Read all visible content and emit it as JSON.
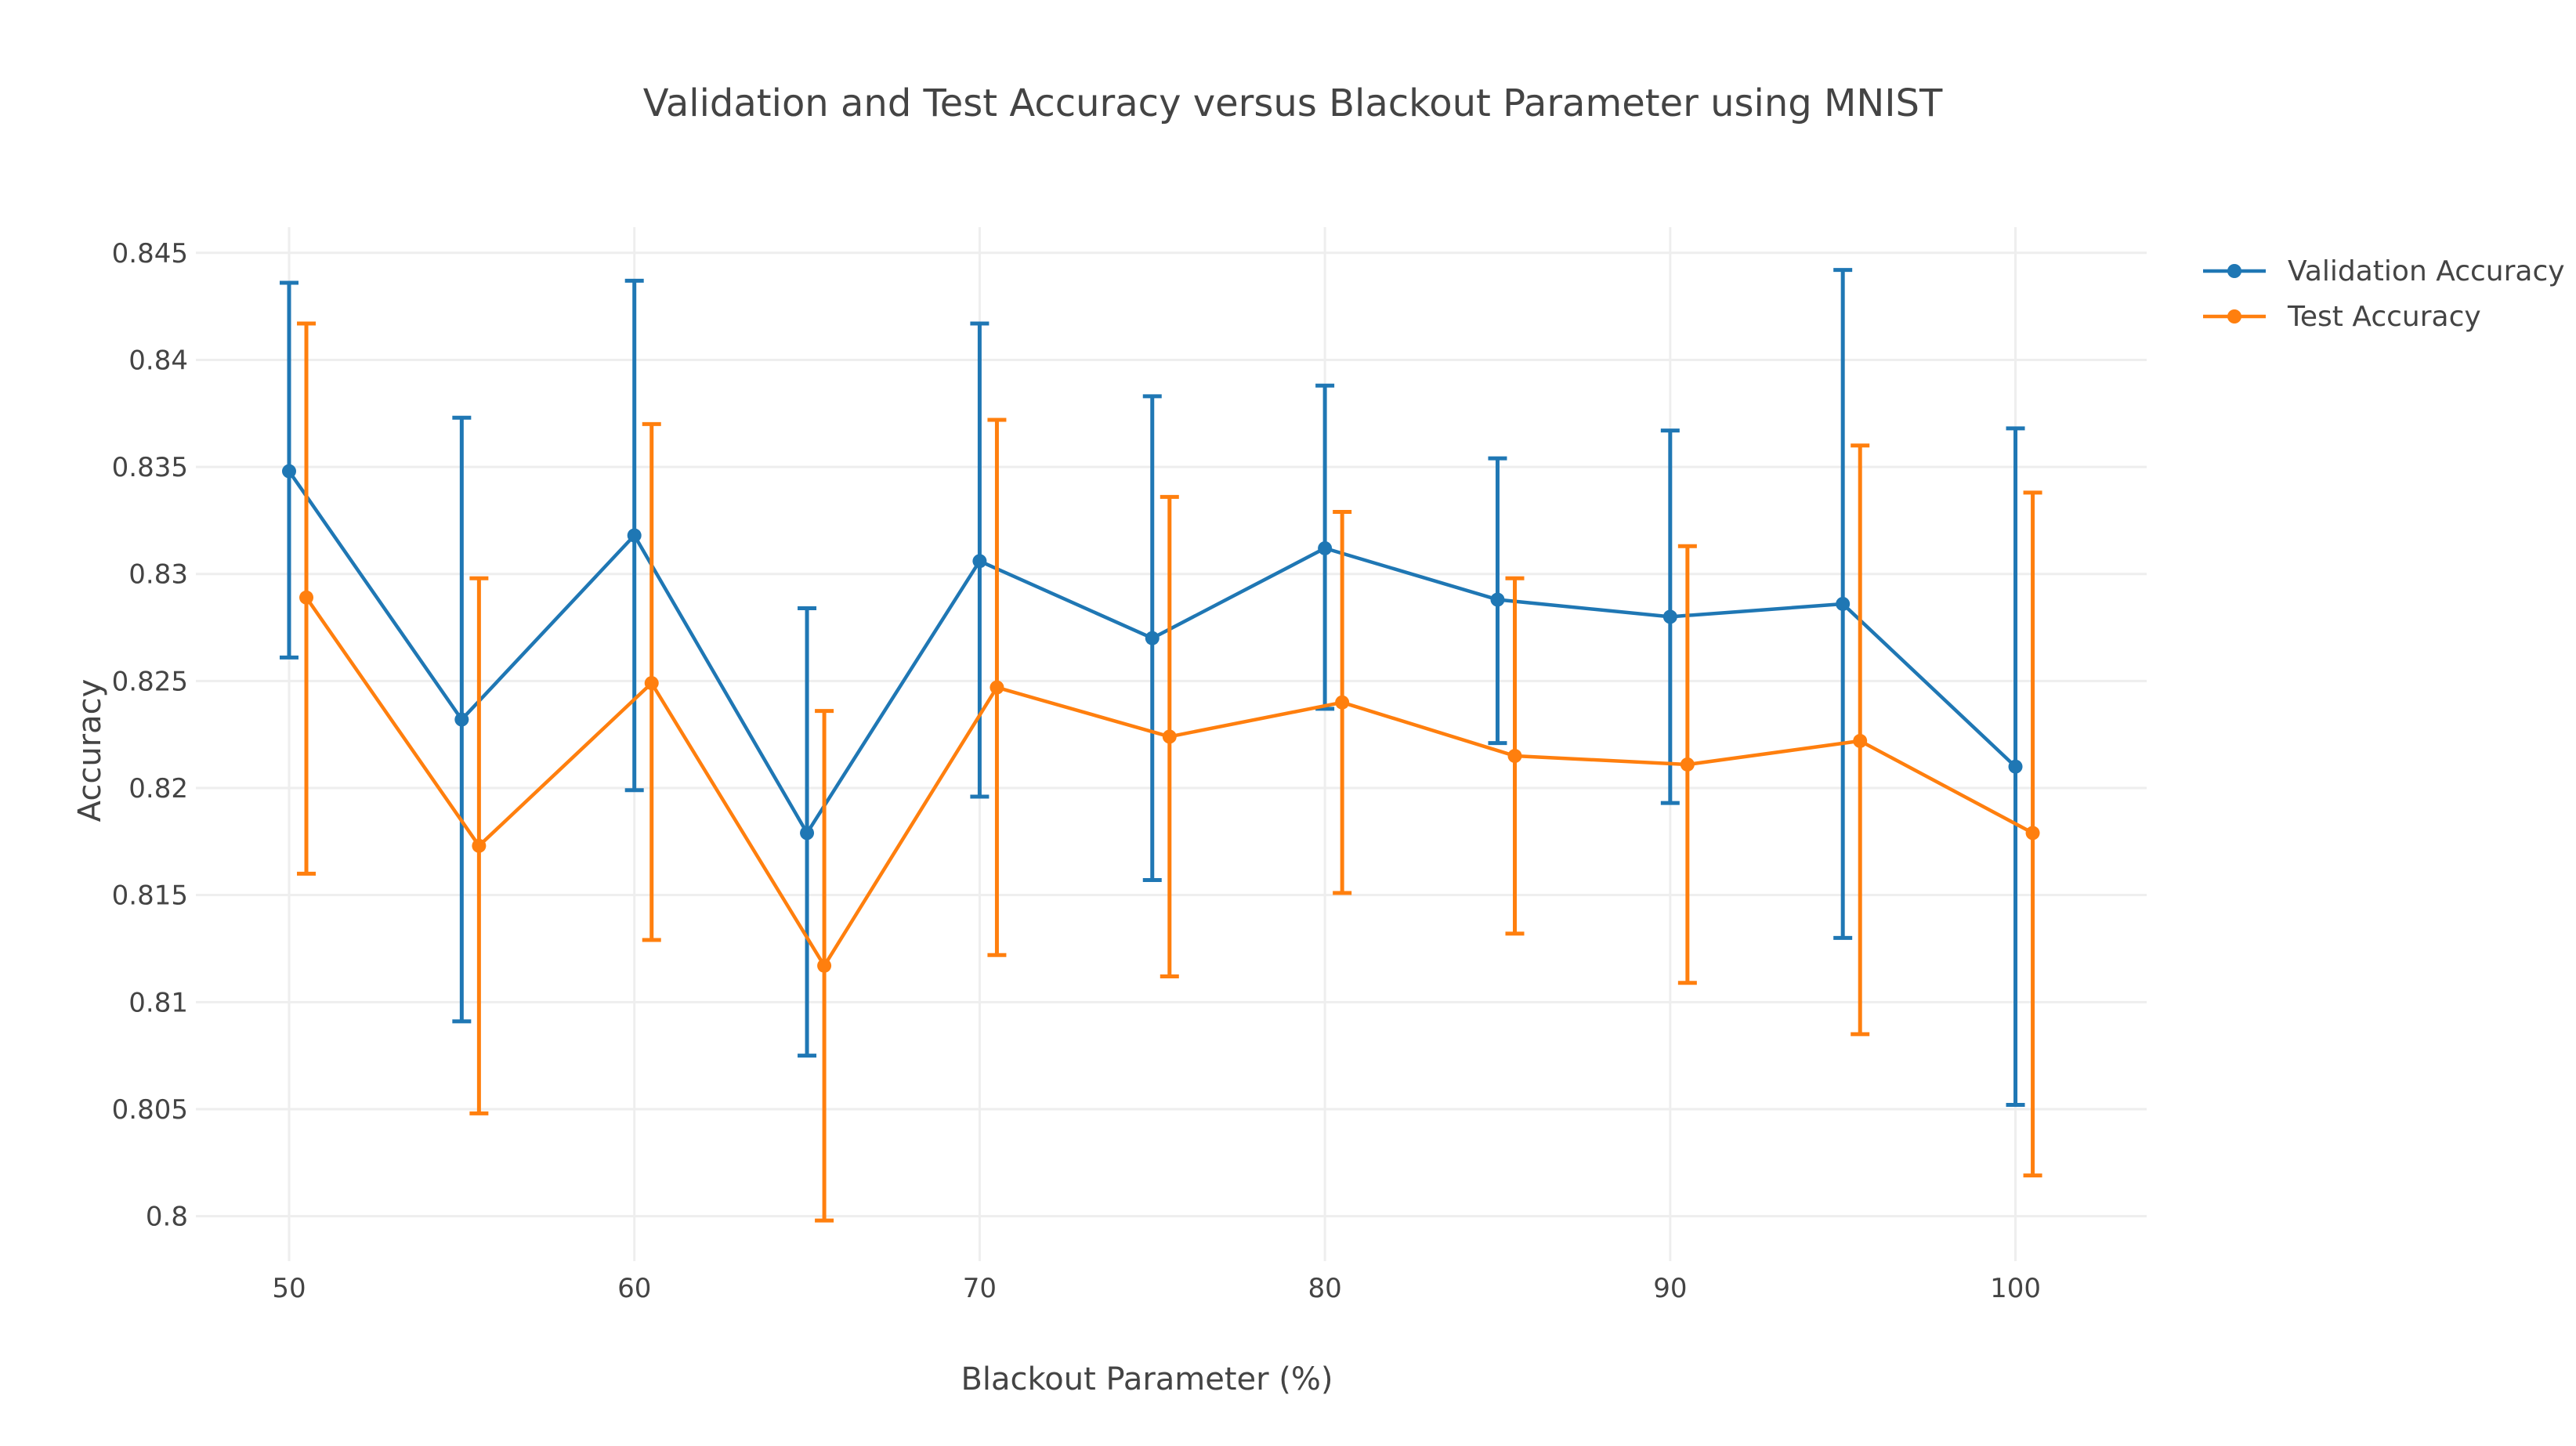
{
  "chart_data": {
    "type": "line",
    "title": "Validation and Test Accuracy versus Blackout Parameter using MNIST",
    "xlabel": "Blackout Parameter (%)",
    "ylabel": "Accuracy",
    "xlim": [
      47.3,
      103.8
    ],
    "ylim": [
      0.7979,
      0.8462
    ],
    "xticks": [
      50,
      60,
      70,
      80,
      90,
      100
    ],
    "xtick_labels": [
      "50",
      "60",
      "70",
      "80",
      "90",
      "100"
    ],
    "yticks": [
      0.8,
      0.805,
      0.81,
      0.815,
      0.82,
      0.825,
      0.83,
      0.835,
      0.84,
      0.845
    ],
    "ytick_labels": [
      "0.8",
      "0.805",
      "0.81",
      "0.815",
      "0.82",
      "0.825",
      "0.83",
      "0.835",
      "0.84",
      "0.845"
    ],
    "grid": true,
    "legend_position": "top-right",
    "series": [
      {
        "name": "Validation Accuracy",
        "color": "#1f77b4",
        "x": [
          50,
          55,
          60,
          65,
          70,
          75,
          80,
          85,
          90,
          95,
          100
        ],
        "y": [
          0.8348,
          0.8232,
          0.8318,
          0.8179,
          0.8306,
          0.827,
          0.8312,
          0.8288,
          0.828,
          0.8286,
          0.821
        ],
        "err_upper": [
          0.8436,
          0.8373,
          0.8437,
          0.8284,
          0.8417,
          0.8383,
          0.8388,
          0.8354,
          0.8367,
          0.8442,
          0.8368
        ],
        "err_lower": [
          0.8261,
          0.8091,
          0.8199,
          0.8075,
          0.8196,
          0.8157,
          0.8237,
          0.8221,
          0.8193,
          0.813,
          0.8052
        ]
      },
      {
        "name": "Test Accuracy",
        "color": "#ff7f0e",
        "x": [
          50.5,
          55.5,
          60.5,
          65.5,
          70.5,
          75.5,
          80.5,
          85.5,
          90.5,
          95.5,
          100.5
        ],
        "y": [
          0.8289,
          0.8173,
          0.8249,
          0.8117,
          0.8247,
          0.8224,
          0.824,
          0.8215,
          0.8211,
          0.8222,
          0.8179
        ],
        "err_upper": [
          0.8417,
          0.8298,
          0.837,
          0.8236,
          0.8372,
          0.8336,
          0.8329,
          0.8298,
          0.8313,
          0.836,
          0.8338
        ],
        "err_lower": [
          0.816,
          0.8048,
          0.8129,
          0.7998,
          0.8122,
          0.8112,
          0.8151,
          0.8132,
          0.8109,
          0.8085,
          0.8019
        ]
      }
    ]
  }
}
